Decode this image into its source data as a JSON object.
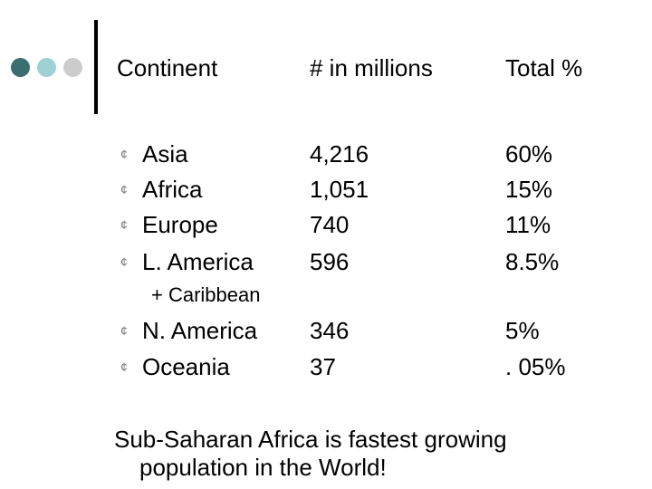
{
  "decor": {
    "dot_colors": [
      "#3b6e6e",
      "#9fd0d4",
      "#cccccc"
    ]
  },
  "header": {
    "continent": "Continent",
    "count": "# in millions",
    "percent": "Total %"
  },
  "bullet_glyph": "¢",
  "rows": [
    {
      "continent": "Asia",
      "count": "4,216",
      "percent": "60%"
    },
    {
      "continent": "Africa",
      "count": "1,051",
      "percent": "15%"
    },
    {
      "continent": "Europe",
      "count": "740",
      "percent": "11%"
    },
    {
      "continent": "L. America",
      "count": "596",
      "percent": "8.5%"
    },
    {
      "continent": "N. America",
      "count": "346",
      "percent": "5%"
    },
    {
      "continent": "Oceania",
      "count": "37",
      "percent": ". 05%"
    }
  ],
  "sub_item": "+ Caribbean",
  "footer": {
    "line1": "Sub-Saharan Africa is fastest growing",
    "line2": "population in the World!"
  }
}
